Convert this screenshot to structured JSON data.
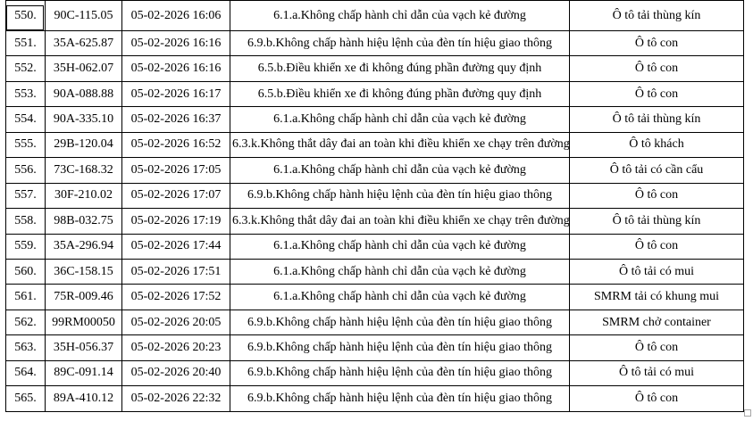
{
  "table": {
    "rows": [
      {
        "no": "550.",
        "plate": "90C-115.05",
        "datetime": "05-02-2026 16:06",
        "violation": "6.1.a.Không chấp hành chỉ dẫn của vạch kẻ đường",
        "vehicle": "Ô tô tải thùng kín"
      },
      {
        "no": "551.",
        "plate": "35A-625.87",
        "datetime": "05-02-2026 16:16",
        "violation": "6.9.b.Không chấp hành hiệu lệnh của đèn tín hiệu giao thông",
        "vehicle": "Ô tô con"
      },
      {
        "no": "552.",
        "plate": "35H-062.07",
        "datetime": "05-02-2026 16:16",
        "violation": "6.5.b.Điều khiển xe đi không đúng phần đường quy định",
        "vehicle": "Ô tô con"
      },
      {
        "no": "553.",
        "plate": "90A-088.88",
        "datetime": "05-02-2026 16:17",
        "violation": "6.5.b.Điều khiển xe đi không đúng phần đường quy định",
        "vehicle": "Ô tô con"
      },
      {
        "no": "554.",
        "plate": "90A-335.10",
        "datetime": "05-02-2026 16:37",
        "violation": "6.1.a.Không chấp hành chỉ dẫn của vạch kẻ đường",
        "vehicle": "Ô tô tải thùng kín"
      },
      {
        "no": "555.",
        "plate": "29B-120.04",
        "datetime": "05-02-2026 16:52",
        "violation": "6.3.k.Không thắt dây đai an toàn khi điều khiển xe chạy trên đường",
        "vehicle": "Ô tô khách"
      },
      {
        "no": "556.",
        "plate": "73C-168.32",
        "datetime": "05-02-2026 17:05",
        "violation": "6.1.a.Không chấp hành chỉ dẫn của vạch kẻ đường",
        "vehicle": "Ô tô tải có cần cẩu"
      },
      {
        "no": "557.",
        "plate": "30F-210.02",
        "datetime": "05-02-2026 17:07",
        "violation": "6.9.b.Không chấp hành hiệu lệnh của đèn tín hiệu giao thông",
        "vehicle": "Ô tô con"
      },
      {
        "no": "558.",
        "plate": "98B-032.75",
        "datetime": "05-02-2026 17:19",
        "violation": "6.3.k.Không thắt dây đai an toàn khi điều khiển xe chạy trên đường",
        "vehicle": "Ô tô tải thùng kín"
      },
      {
        "no": "559.",
        "plate": "35A-296.94",
        "datetime": "05-02-2026 17:44",
        "violation": "6.1.a.Không chấp hành chỉ dẫn của vạch kẻ đường",
        "vehicle": "Ô tô con"
      },
      {
        "no": "560.",
        "plate": "36C-158.15",
        "datetime": "05-02-2026 17:51",
        "violation": "6.1.a.Không chấp hành chỉ dẫn của vạch kẻ đường",
        "vehicle": "Ô tô tải có mui"
      },
      {
        "no": "561.",
        "plate": "75R-009.46",
        "datetime": "05-02-2026 17:52",
        "violation": "6.1.a.Không chấp hành chỉ dẫn của vạch kẻ đường",
        "vehicle": "SMRM tải có khung mui"
      },
      {
        "no": "562.",
        "plate": "99RM00050",
        "datetime": "05-02-2026 20:05",
        "violation": "6.9.b.Không chấp hành hiệu lệnh của đèn tín hiệu giao thông",
        "vehicle": "SMRM chở container"
      },
      {
        "no": "563.",
        "plate": "35H-056.37",
        "datetime": "05-02-2026 20:23",
        "violation": "6.9.b.Không chấp hành hiệu lệnh của đèn tín hiệu giao thông",
        "vehicle": "Ô tô con"
      },
      {
        "no": "564.",
        "plate": "89C-091.14",
        "datetime": "05-02-2026 20:40",
        "violation": "6.9.b.Không chấp hành hiệu lệnh của đèn tín hiệu giao thông",
        "vehicle": "Ô tô tải có mui"
      },
      {
        "no": "565.",
        "plate": "89A-410.12",
        "datetime": "05-02-2026 22:32",
        "violation": "6.9.b.Không chấp hành hiệu lệnh của đèn tín hiệu giao thông",
        "vehicle": "Ô tô con"
      }
    ]
  }
}
